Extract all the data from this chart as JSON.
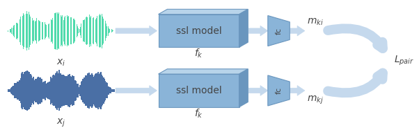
{
  "bg_color": "#ffffff",
  "waveform_top_color": "#3dd6a3",
  "waveform_bot_color": "#4a6fa5",
  "box_face": "#8ab4d8",
  "box_edge": "#6a96be",
  "box_top_face": "#b8d4ea",
  "box_side_face": "#6a96be",
  "fc_face": "#8ab4d8",
  "fc_edge": "#6a96be",
  "arrow_color": "#c5d9ed",
  "arrow_edge": "#aac4de",
  "text_color": "#444444",
  "label_ssl": "ssl model",
  "label_fc": "fc",
  "label_mki": "$m_{ki}$",
  "label_mkj": "$m_{kj}$",
  "label_lpair": "$L_{pair}$",
  "label_xi": "$x_i$",
  "label_xj": "$x_j$",
  "label_fk": "$f_k$"
}
